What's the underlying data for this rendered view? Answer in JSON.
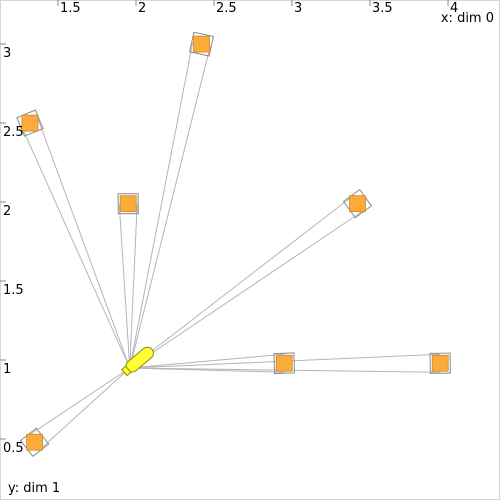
{
  "chart_data": {
    "type": "scatter",
    "xlabel": "x: dim 0",
    "ylabel": "y: dim 1",
    "xticks": [
      "1.5",
      "2",
      "2.5",
      "3",
      "3.5",
      "4"
    ],
    "yticks": [
      "0.5",
      "1",
      "1.5",
      "2",
      "2.5",
      "3"
    ],
    "xlim": [
      1.2,
      4.2
    ],
    "ylim": [
      0.4,
      3.2
    ],
    "robot": {
      "x": 1.96,
      "y": 1.0,
      "heading_deg": 40
    },
    "landmarks": [
      {
        "x": 1.35,
        "y": 0.53
      },
      {
        "x": 1.32,
        "y": 2.55
      },
      {
        "x": 1.95,
        "y": 2.04
      },
      {
        "x": 2.42,
        "y": 3.05
      },
      {
        "x": 3.42,
        "y": 2.04
      },
      {
        "x": 2.95,
        "y": 1.03
      },
      {
        "x": 3.95,
        "y": 1.03
      }
    ]
  },
  "colors": {
    "landmark_fill": "#fbab3a",
    "robot_fill": "#ffff33",
    "ray": "#b5b5b5"
  }
}
